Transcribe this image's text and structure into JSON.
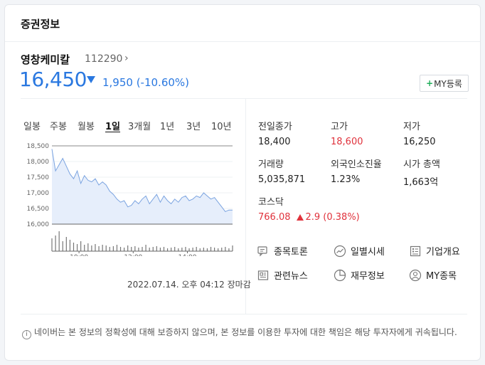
{
  "header": {
    "title": "증권정보"
  },
  "stock": {
    "name": "영창케미칼",
    "code": "112290",
    "code_chevron": "›",
    "price": "16,450",
    "change_text": "1,950 (-10.60%)",
    "my_button_plus": "+",
    "my_button_label": "MY등록"
  },
  "periods": [
    "일봉",
    "주봉",
    "월봉",
    "1일",
    "3개월",
    "1년",
    "3년",
    "10년"
  ],
  "active_period": "1일",
  "chart_data": {
    "type": "area",
    "y_ticks": [
      "18,500",
      "18,000",
      "17,500",
      "17,000",
      "16,500",
      "16,000"
    ],
    "x_ticks": [
      "10:00",
      "12:00",
      "14:00"
    ],
    "ylim": [
      16000,
      18500
    ],
    "color_line": "#7aa3e0",
    "color_fill": "#e6eefb",
    "x": [
      0,
      2,
      4,
      6,
      8,
      10,
      12,
      14,
      16,
      18,
      20,
      22,
      24,
      26,
      28,
      30,
      32,
      34,
      36,
      38,
      40,
      42,
      44,
      46,
      48,
      50,
      52,
      54,
      56,
      58,
      60,
      62,
      64,
      66,
      68,
      70,
      72,
      74,
      76,
      78,
      80,
      82,
      84,
      86,
      88,
      90,
      92,
      94,
      96,
      98,
      100
    ],
    "y": [
      18400,
      17700,
      17900,
      18100,
      17850,
      17600,
      17450,
      17700,
      17300,
      17550,
      17400,
      17350,
      17450,
      17250,
      17350,
      17250,
      17050,
      16950,
      16800,
      16700,
      16750,
      16550,
      16600,
      16750,
      16650,
      16800,
      16900,
      16650,
      16800,
      16950,
      16700,
      16900,
      16750,
      16650,
      16800,
      16700,
      16850,
      16900,
      16750,
      16800,
      16900,
      16850,
      17000,
      16900,
      16800,
      16850,
      16700,
      16550,
      16400,
      16450,
      16450
    ],
    "volume": [
      18,
      22,
      28,
      14,
      20,
      16,
      12,
      10,
      14,
      9,
      11,
      8,
      10,
      7,
      9,
      8,
      6,
      7,
      9,
      6,
      5,
      8,
      6,
      7,
      5,
      6,
      9,
      5,
      6,
      7,
      5,
      6,
      4,
      5,
      6,
      4,
      5,
      6,
      4,
      5,
      6,
      4,
      5,
      4,
      6,
      5,
      4,
      5,
      6,
      4,
      8
    ]
  },
  "timestamp": "2022.07.14. 오후 04:12 장마감",
  "stats": {
    "prev_close_label": "전일종가",
    "prev_close": "18,400",
    "high_label": "고가",
    "high": "18,600",
    "low_label": "저가",
    "low": "16,250",
    "volume_label": "거래량",
    "volume": "5,035,871",
    "foreign_label": "외국인소진율",
    "foreign": "1.23%",
    "mcap_label": "시가 총액",
    "mcap": "1,663억",
    "kosdaq_label": "코스닥",
    "kosdaq": "766.08",
    "kosdaq_change": "2.9 (0.38%)"
  },
  "links": {
    "forum": "종목토론",
    "daily": "일별시세",
    "company": "기업개요",
    "news": "관련뉴스",
    "financial": "재무정보",
    "my": "MY종목"
  },
  "notice": "네이버는 본 정보의 정확성에 대해 보증하지 않으며, 본 정보를 이용한 투자에 대한 책임은 해당 투자자에게 귀속됩니다.",
  "colors": {
    "blue": "#2a78e0",
    "red": "#e0323c"
  }
}
